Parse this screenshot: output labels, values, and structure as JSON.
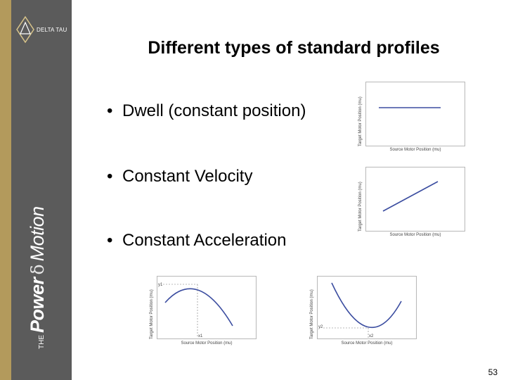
{
  "logo": {
    "text": "DELTA TAU"
  },
  "brand": {
    "prefix": "THE",
    "word1": "Power",
    "symbol": "δ",
    "word2": "Motion"
  },
  "slide": {
    "title": "Different types of standard profiles",
    "bullets": [
      {
        "marker": "•",
        "text": "Dwell (constant position)"
      },
      {
        "marker": "•",
        "text": "Constant Velocity"
      },
      {
        "marker": "•",
        "text": "Constant Acceleration"
      }
    ],
    "page_number": "53"
  },
  "plots": {
    "dwell": {
      "ylabel": "Target Motor Position (mu)",
      "xlabel": "Source Motor Position (mu)"
    },
    "velocity": {
      "ylabel": "Target Motor Position (mu)",
      "xlabel": "Source Motor Position (mu)"
    },
    "accel_max": {
      "ylabel": "Target Motor Position (mu)",
      "xlabel": "Source Motor Position (mu)",
      "y_mark": "y1",
      "x_mark": "x1"
    },
    "accel_min": {
      "ylabel": "Target Motor Position (mu)",
      "xlabel": "Source Motor Position (mu)",
      "y_mark": "y2",
      "x_mark": "x2"
    }
  }
}
